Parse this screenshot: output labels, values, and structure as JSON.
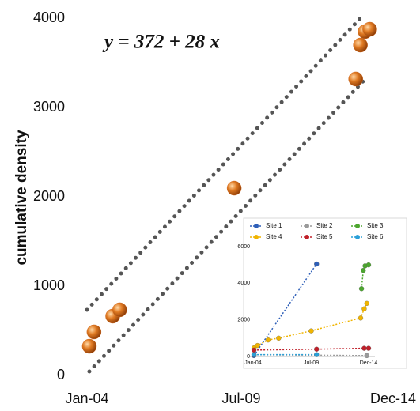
{
  "chart_data": [
    {
      "type": "scatter",
      "annotation": "y = 372 + 28 x",
      "ylabel": "cumulative density",
      "x": [
        "Feb-04",
        "Apr-04",
        "Dec-04",
        "Mar-05",
        "Apr-09",
        "Aug-13",
        "Oct-13",
        "Dec-13",
        "Feb-14"
      ],
      "values": [
        327,
        487,
        664,
        735,
        2097,
        3319,
        3699,
        3850,
        3876
      ],
      "color": "#d2691e",
      "bounds": [
        {
          "x": [
            "Jan-04",
            "Oct-13"
          ],
          "values": [
            735,
            4000
          ],
          "color": "#555555"
        },
        {
          "x": [
            "Feb-04",
            "Jan-14"
          ],
          "values": [
            44,
            3345
          ],
          "color": "#555555"
        }
      ],
      "xlim": [
        "Jan-04",
        "Dec-14"
      ],
      "xticks": [
        "Jan-04",
        "Jul-09",
        "Dec-14"
      ],
      "ylim": [
        0,
        4000
      ],
      "yticks": [
        0,
        1000,
        2000,
        3000,
        4000
      ]
    },
    {
      "type": "line",
      "series": [
        {
          "name": "Site 1",
          "color": "#2e5fb8",
          "x": [
            "Feb-04",
            "Jan-10"
          ],
          "values": [
            50,
            5050
          ]
        },
        {
          "name": "Site 2",
          "color": "#9a9a9a",
          "x": [
            "Feb-04",
            "Oct-14"
          ],
          "values": [
            100,
            50
          ]
        },
        {
          "name": "Site 3",
          "color": "#4ca62e",
          "x": [
            "Apr-14",
            "Jun-14",
            "Aug-14",
            "Dec-14"
          ],
          "values": [
            3700,
            4700,
            4950,
            5000
          ]
        },
        {
          "name": "Site 4",
          "color": "#f0b400",
          "x": [
            "Feb-04",
            "Jun-04",
            "Jun-05",
            "Jun-06",
            "Jul-09",
            "Mar-14",
            "Jul-14",
            "Oct-14"
          ],
          "values": [
            470,
            600,
            900,
            1000,
            1400,
            2100,
            2600,
            2900
          ]
        },
        {
          "name": "Site 5",
          "color": "#c0202a",
          "x": [
            "Feb-04",
            "Jan-10",
            "Jul-14",
            "Dec-14"
          ],
          "values": [
            350,
            400,
            450,
            450
          ]
        },
        {
          "name": "Site 6",
          "color": "#2aa0d8",
          "x": [
            "Feb-04",
            "Jan-10"
          ],
          "values": [
            100,
            100
          ]
        }
      ],
      "xlim": [
        "Jan-04",
        "Dec-14"
      ],
      "xticks": [
        "Jan-04",
        "Jul-09",
        "Dec-14"
      ],
      "ylim": [
        0,
        6000
      ],
      "yticks": [
        0,
        2000,
        4000,
        6000
      ]
    }
  ]
}
